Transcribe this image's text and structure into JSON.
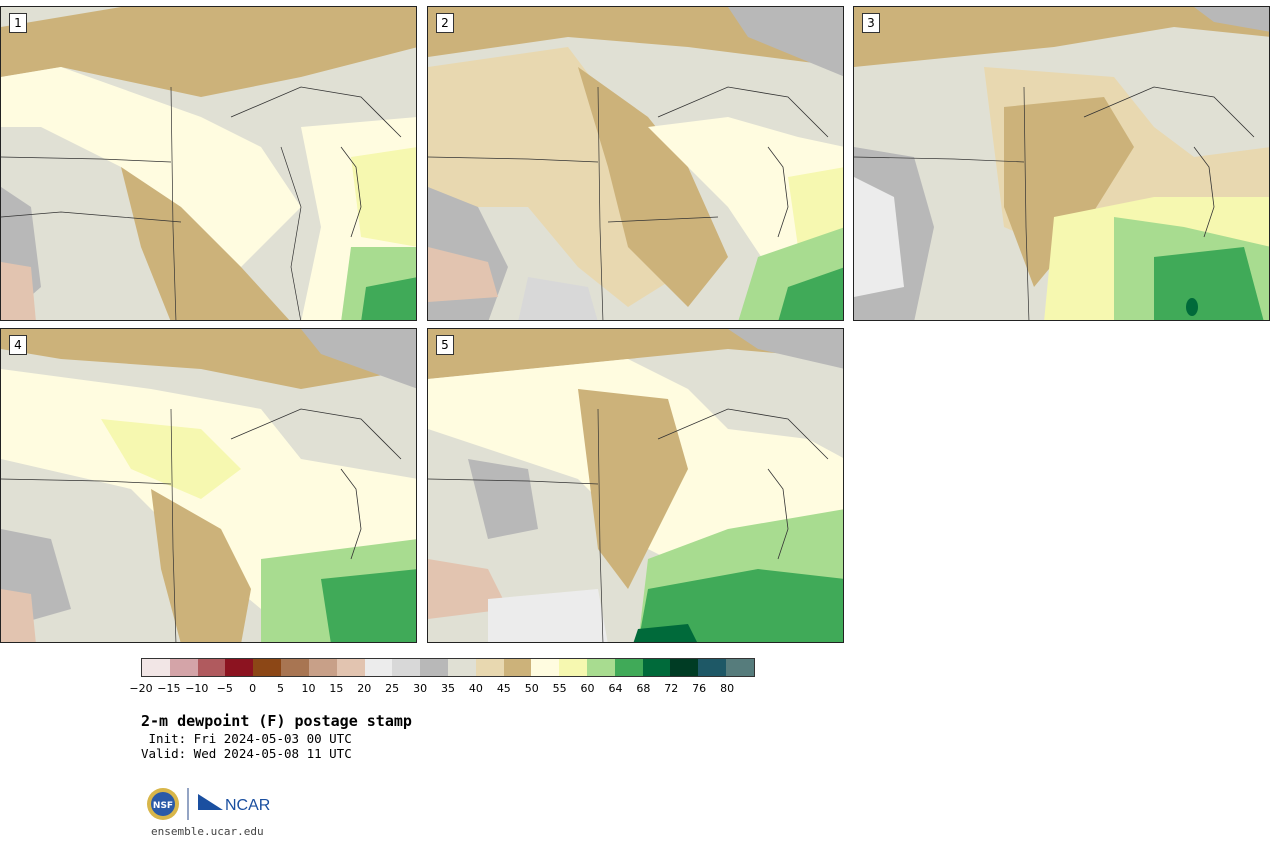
{
  "panels": [
    {
      "label": "1"
    },
    {
      "label": "2"
    },
    {
      "label": "3"
    },
    {
      "label": "4"
    },
    {
      "label": "5"
    }
  ],
  "colorbar": {
    "colors": [
      "#f2e6e6",
      "#d4a4a8",
      "#b05a5e",
      "#8c1320",
      "#8c4716",
      "#a87552",
      "#c8a088",
      "#e2c4b0",
      "#ececec",
      "#d8d8d8",
      "#b8b8b8",
      "#e0e0d4",
      "#e8d8b0",
      "#ccb27a",
      "#fffce0",
      "#f6f8b0",
      "#a8dc90",
      "#40aa58",
      "#006a3a",
      "#003c24",
      "#1e5866",
      "#567c7c"
    ],
    "tick_labels": [
      "−20",
      "−15",
      "−10",
      "−5",
      "0",
      "5",
      "10",
      "15",
      "20",
      "25",
      "30",
      "35",
      "40",
      "45",
      "50",
      "55",
      "60",
      "64",
      "68",
      "72",
      "76",
      "80"
    ]
  },
  "title": "2-m dewpoint (F) postage stamp",
  "init_line": " Init: Fri 2024-05-03 00 UTC",
  "valid_line": "Valid: Wed 2024-05-08 11 UTC",
  "footer": {
    "url": "ensemble.ucar.edu",
    "logo_nsf": "NSF",
    "logo_ncar": "NCAR"
  }
}
